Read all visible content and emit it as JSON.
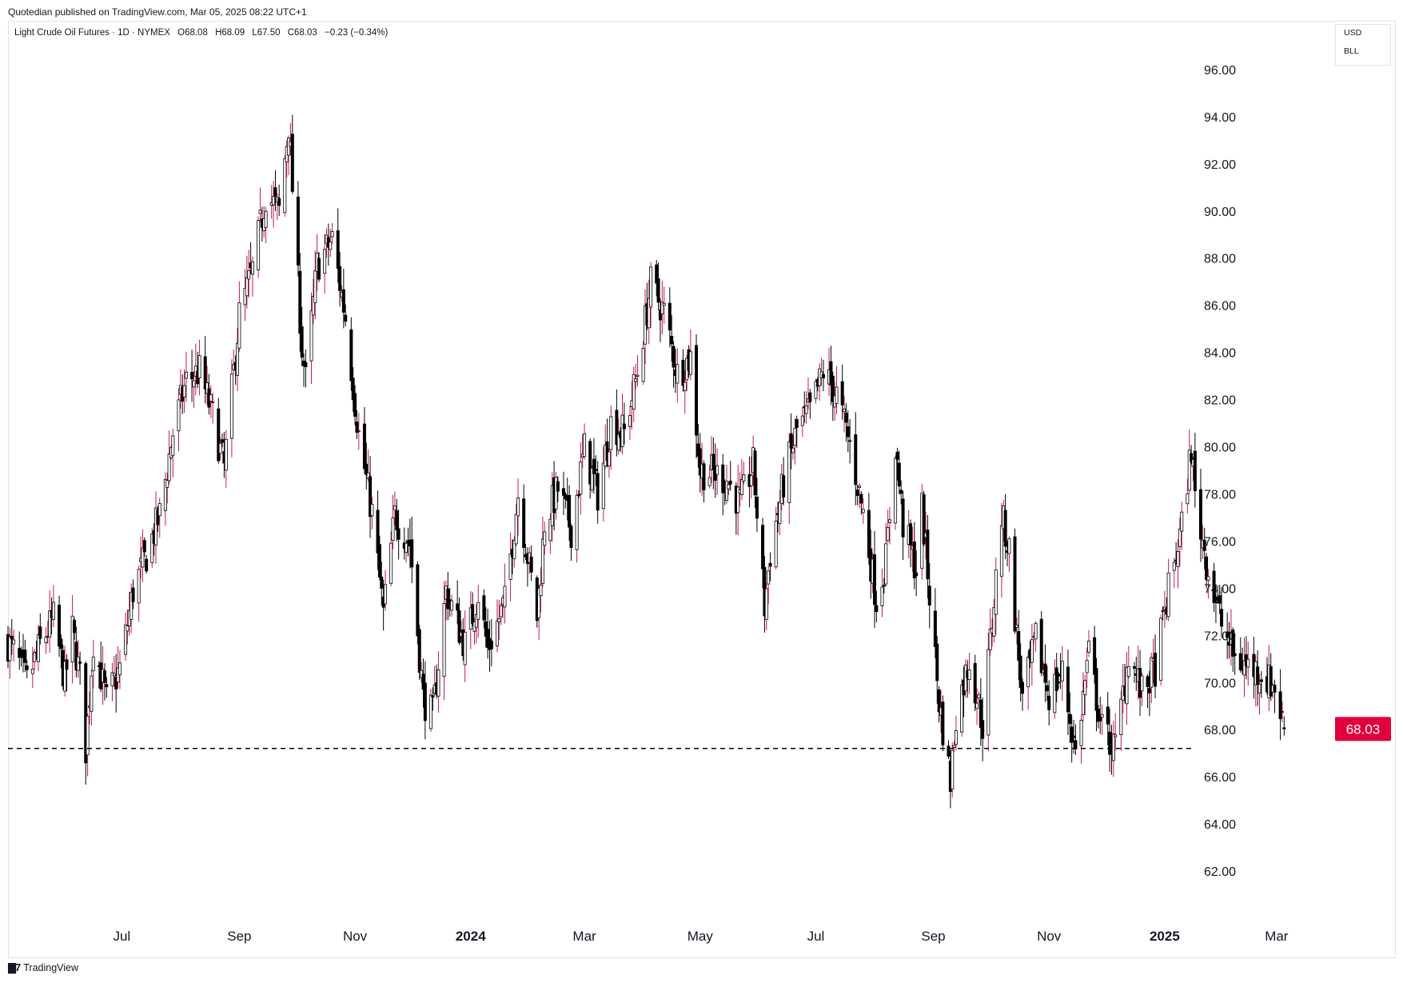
{
  "publisher": "Quotedian published on TradingView.com, Mar 05, 2025 08:22 UTC+1",
  "legend": {
    "symbol": "Light Crude Oil Futures · 1D · NYMEX",
    "open": "O68.08",
    "high": "H68.09",
    "low": "L67.50",
    "close": "C68.03",
    "change": "−0.23 (−0.34%)"
  },
  "currency": "USD",
  "unit": "BLL",
  "footer_logo": "TradingView",
  "colors": {
    "up": "#ffffff",
    "down": "#000000",
    "outline": "#000000",
    "wick_up": "#c2185b",
    "price_tag": "#e0003c",
    "axis_text": "#131722",
    "dashed": "#000000"
  },
  "chart_data": {
    "type": "candlestick",
    "title": "",
    "ylim": [
      60,
      98
    ],
    "y_ticks": [
      62,
      64,
      66,
      68,
      70,
      72,
      74,
      76,
      78,
      80,
      82,
      84,
      86,
      88,
      90,
      92,
      94,
      96
    ],
    "y_tick_labels": [
      "62.00",
      "64.00",
      "66.00",
      "68.00",
      "70.00",
      "72.00",
      "74.00",
      "76.00",
      "78.00",
      "80.00",
      "82.00",
      "84.00",
      "86.00",
      "88.00",
      "90.00",
      "92.00",
      "94.00",
      "96.00"
    ],
    "x_ticks": [
      {
        "date": "2023-07-01",
        "label": "Jul",
        "bold": false
      },
      {
        "date": "2023-09-01",
        "label": "Sep",
        "bold": false
      },
      {
        "date": "2023-11-01",
        "label": "Nov",
        "bold": false
      },
      {
        "date": "2024-01-01",
        "label": "2024",
        "bold": true
      },
      {
        "date": "2024-03-01",
        "label": "Mar",
        "bold": false
      },
      {
        "date": "2024-05-01",
        "label": "May",
        "bold": false
      },
      {
        "date": "2024-07-01",
        "label": "Jul",
        "bold": false
      },
      {
        "date": "2024-09-01",
        "label": "Sep",
        "bold": false
      },
      {
        "date": "2024-11-01",
        "label": "Nov",
        "bold": false
      },
      {
        "date": "2025-01-01",
        "label": "2025",
        "bold": true
      },
      {
        "date": "2025-03-01",
        "label": "Mar",
        "bold": false
      }
    ],
    "x_range": [
      "2023-05-02",
      "2025-03-31"
    ],
    "last_price": 68.03,
    "last_price_label": "68.03",
    "support_level": 67.2,
    "series_anchors": [
      [
        "2023-05-02",
        71.7
      ],
      [
        "2023-05-05",
        71.3
      ],
      [
        "2023-05-12",
        70.0
      ],
      [
        "2023-05-19",
        71.6
      ],
      [
        "2023-05-26",
        72.7
      ],
      [
        "2023-06-01",
        70.1
      ],
      [
        "2023-06-05",
        72.2
      ],
      [
        "2023-06-09",
        70.2
      ],
      [
        "2023-06-12",
        67.2
      ],
      [
        "2023-06-16",
        71.8
      ],
      [
        "2023-06-23",
        69.2
      ],
      [
        "2023-06-30",
        70.6
      ],
      [
        "2023-07-07",
        73.9
      ],
      [
        "2023-07-14",
        75.4
      ],
      [
        "2023-07-21",
        77.1
      ],
      [
        "2023-07-28",
        80.6
      ],
      [
        "2023-08-04",
        82.8
      ],
      [
        "2023-08-11",
        83.2
      ],
      [
        "2023-08-18",
        81.3
      ],
      [
        "2023-08-24",
        79.1
      ],
      [
        "2023-09-01",
        85.6
      ],
      [
        "2023-09-08",
        87.5
      ],
      [
        "2023-09-15",
        90.7
      ],
      [
        "2023-09-22",
        90.0
      ],
      [
        "2023-09-27",
        93.7
      ],
      [
        "2023-10-04",
        84.2
      ],
      [
        "2023-10-06",
        82.8
      ],
      [
        "2023-10-12",
        87.7
      ],
      [
        "2023-10-20",
        88.8
      ],
      [
        "2023-10-27",
        85.5
      ],
      [
        "2023-11-03",
        80.5
      ],
      [
        "2023-11-10",
        77.2
      ],
      [
        "2023-11-16",
        72.9
      ],
      [
        "2023-11-22",
        77.1
      ],
      [
        "2023-11-30",
        75.9
      ],
      [
        "2023-12-07",
        69.3
      ],
      [
        "2023-12-12",
        68.6
      ],
      [
        "2023-12-19",
        73.9
      ],
      [
        "2023-12-29",
        71.6
      ],
      [
        "2024-01-05",
        73.8
      ],
      [
        "2024-01-10",
        71.4
      ],
      [
        "2024-01-19",
        73.4
      ],
      [
        "2024-01-26",
        78.0
      ],
      [
        "2024-02-05",
        72.8
      ],
      [
        "2024-02-09",
        76.8
      ],
      [
        "2024-02-16",
        78.2
      ],
      [
        "2024-02-23",
        76.5
      ],
      [
        "2024-03-01",
        79.9
      ],
      [
        "2024-03-08",
        78.0
      ],
      [
        "2024-03-15",
        81.0
      ],
      [
        "2024-03-22",
        80.6
      ],
      [
        "2024-03-29",
        83.2
      ],
      [
        "2024-04-05",
        86.9
      ],
      [
        "2024-04-12",
        85.7
      ],
      [
        "2024-04-19",
        83.1
      ],
      [
        "2024-04-26",
        83.8
      ],
      [
        "2024-05-01",
        79.0
      ],
      [
        "2024-05-08",
        78.9
      ],
      [
        "2024-05-15",
        78.6
      ],
      [
        "2024-05-22",
        77.6
      ],
      [
        "2024-05-29",
        79.2
      ],
      [
        "2024-06-04",
        73.2
      ],
      [
        "2024-06-07",
        75.5
      ],
      [
        "2024-06-14",
        78.5
      ],
      [
        "2024-06-21",
        80.7
      ],
      [
        "2024-06-28",
        81.5
      ],
      [
        "2024-07-05",
        83.2
      ],
      [
        "2024-07-12",
        82.2
      ],
      [
        "2024-07-19",
        80.1
      ],
      [
        "2024-07-26",
        77.2
      ],
      [
        "2024-08-02",
        73.5
      ],
      [
        "2024-08-07",
        75.2
      ],
      [
        "2024-08-12",
        80.1
      ],
      [
        "2024-08-16",
        76.7
      ],
      [
        "2024-08-23",
        74.8
      ],
      [
        "2024-08-26",
        77.4
      ],
      [
        "2024-09-04",
        69.2
      ],
      [
        "2024-09-10",
        65.8
      ],
      [
        "2024-09-13",
        68.7
      ],
      [
        "2024-09-20",
        71.0
      ],
      [
        "2024-09-27",
        68.2
      ],
      [
        "2024-10-04",
        74.4
      ],
      [
        "2024-10-07",
        77.1
      ],
      [
        "2024-10-11",
        75.6
      ],
      [
        "2024-10-18",
        69.2
      ],
      [
        "2024-10-25",
        71.8
      ],
      [
        "2024-11-01",
        69.5
      ],
      [
        "2024-11-08",
        70.4
      ],
      [
        "2024-11-15",
        67.0
      ],
      [
        "2024-11-22",
        71.2
      ],
      [
        "2024-11-29",
        68.0
      ],
      [
        "2024-12-06",
        67.2
      ],
      [
        "2024-12-13",
        71.3
      ],
      [
        "2024-12-20",
        69.5
      ],
      [
        "2024-12-27",
        70.6
      ],
      [
        "2025-01-03",
        73.9
      ],
      [
        "2025-01-10",
        76.6
      ],
      [
        "2025-01-15",
        80.0
      ],
      [
        "2025-01-17",
        77.9
      ],
      [
        "2025-01-24",
        74.7
      ],
      [
        "2025-01-31",
        72.5
      ],
      [
        "2025-02-07",
        71.0
      ],
      [
        "2025-02-14",
        70.7
      ],
      [
        "2025-02-21",
        70.4
      ],
      [
        "2025-02-28",
        69.8
      ],
      [
        "2025-03-05",
        68.03
      ]
    ]
  }
}
